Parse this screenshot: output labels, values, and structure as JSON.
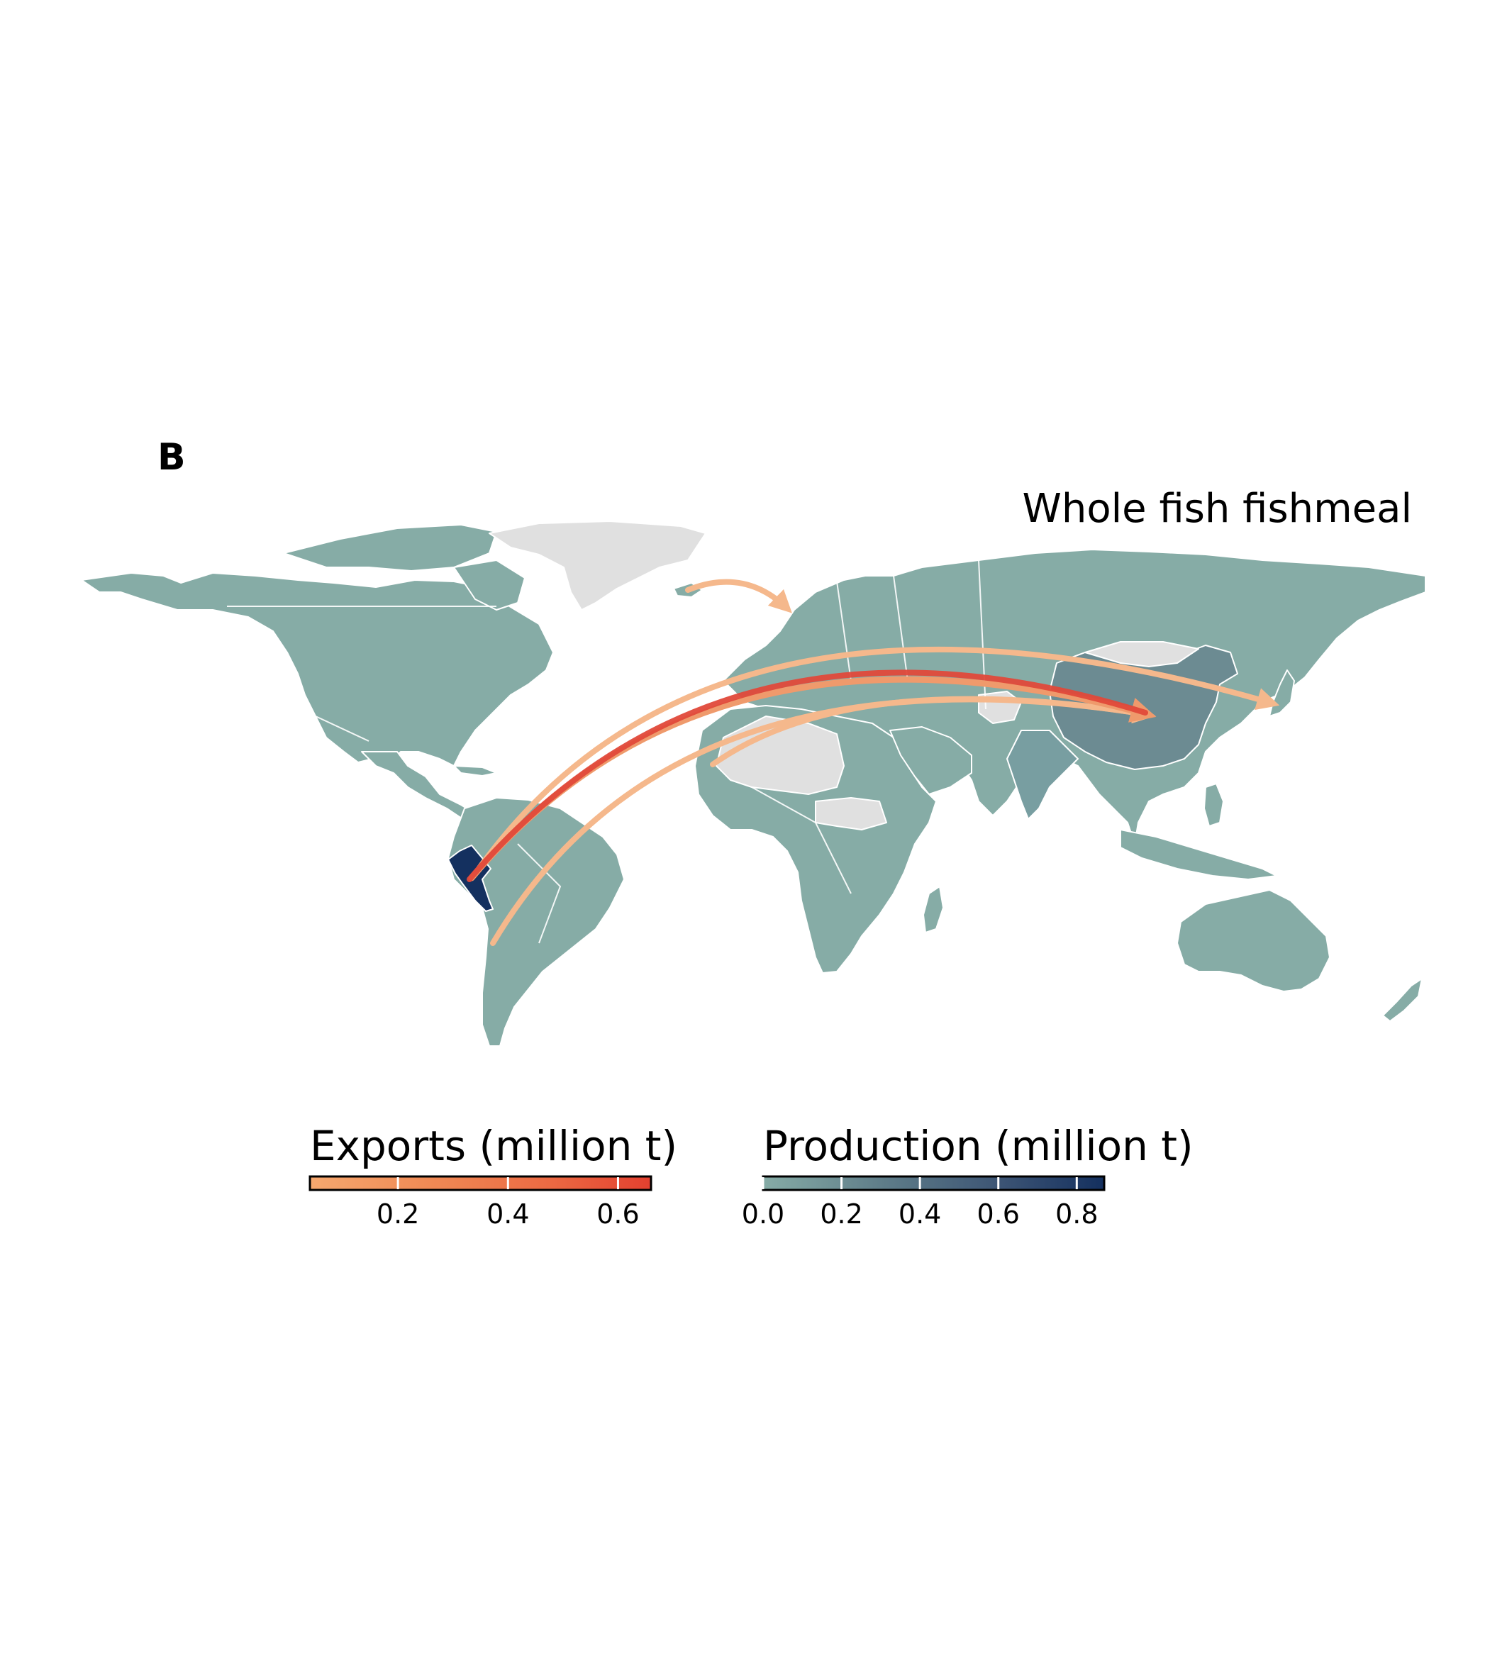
{
  "panel_label": "B",
  "title": "Whole fish fishmeal",
  "colors": {
    "land": "#86aca6",
    "no_data": "#e0e0e0",
    "border": "#ffffff",
    "peru": "#14305f",
    "china": "#6c8b92",
    "india": "#789ea1",
    "flow_low": "#f5b88c",
    "flow_mid": "#ef8f62",
    "flow_high": "#e0493a"
  },
  "flows": [
    {
      "from": "Peru",
      "to": "China",
      "value": 0.62
    },
    {
      "from": "Peru",
      "to": "China",
      "value": 0.35
    },
    {
      "from": "Peru",
      "to": "Japan",
      "value": 0.08
    },
    {
      "from": "Chile",
      "to": "China",
      "value": 0.05
    },
    {
      "from": "West Africa",
      "to": "China",
      "value": 0.05
    },
    {
      "from": "Iceland",
      "to": "Norway",
      "value": 0.05
    }
  ],
  "legends": {
    "exports": {
      "title": "Exports (million t)",
      "min": 0.04,
      "max": 0.66,
      "ticks": [
        0.2,
        0.4,
        0.6
      ],
      "tick_labels": [
        "0.2",
        "0.4",
        "0.6"
      ],
      "gradient": [
        "#f6a86f",
        "#f08a55",
        "#ec6a43",
        "#e4402f"
      ]
    },
    "production": {
      "title": "Production (million t)",
      "min": 0.0,
      "max": 0.87,
      "ticks": [
        0.0,
        0.2,
        0.4,
        0.6,
        0.8
      ],
      "tick_labels": [
        "0.0",
        "0.2",
        "0.4",
        "0.6",
        "0.8"
      ],
      "gradient": [
        "#86aca6",
        "#5f7d89",
        "#3c5474",
        "#14305f"
      ]
    }
  }
}
